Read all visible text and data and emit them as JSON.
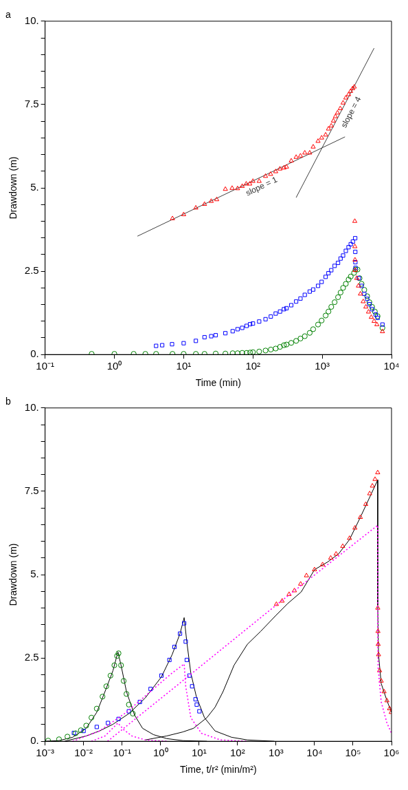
{
  "chart_data": [
    {
      "type": "scatter",
      "title": "a",
      "xlabel": "Time (min)",
      "ylabel": "Drawdown (m)",
      "log": "x",
      "grid": false,
      "xlim": [
        0.1,
        10000
      ],
      "xticks": [
        {
          "value": 0.1,
          "label": "10⁻¹"
        },
        {
          "value": 1,
          "label": "10⁰"
        },
        {
          "value": 10,
          "label": "10¹"
        },
        {
          "value": 100,
          "label": "10²"
        },
        {
          "value": 1000,
          "label": "10³"
        },
        {
          "value": 10000,
          "label": "10⁴"
        }
      ],
      "ylim": [
        0,
        10
      ],
      "yticks": [
        {
          "value": 0,
          "label": "0."
        },
        {
          "value": 0.5,
          "label": null
        },
        {
          "value": 1,
          "label": null
        },
        {
          "value": 1.5,
          "label": null
        },
        {
          "value": 2,
          "label": null
        },
        {
          "value": 2.5,
          "label": "2.5"
        },
        {
          "value": 3,
          "label": null
        },
        {
          "value": 3.5,
          "label": null
        },
        {
          "value": 4,
          "label": null
        },
        {
          "value": 4.5,
          "label": null
        },
        {
          "value": 5,
          "label": "5."
        },
        {
          "value": 5.5,
          "label": null
        },
        {
          "value": 6,
          "label": null
        },
        {
          "value": 6.5,
          "label": null
        },
        {
          "value": 7,
          "label": null
        },
        {
          "value": 7.5,
          "label": "7.5"
        },
        {
          "value": 8,
          "label": null
        },
        {
          "value": 8.5,
          "label": null
        },
        {
          "value": 9,
          "label": null
        },
        {
          "value": 9.5,
          "label": null
        },
        {
          "value": 10,
          "label": "10."
        }
      ],
      "annotations": [
        "slope = 1",
        "slope = 4"
      ],
      "series": [
        {
          "type": "scatter",
          "marker": "triangle",
          "color": "#ff0000",
          "x": [
            6.9,
            10,
            15,
            20,
            25,
            30,
            40,
            50,
            60,
            70,
            80,
            90,
            100,
            123,
            152,
            180,
            213,
            245,
            280,
            305,
            357,
            420,
            485,
            560,
            660,
            740,
            870,
            980,
            1120,
            1230,
            1350,
            1450,
            1550,
            1660,
            1820,
            2000,
            2190,
            2400,
            2570,
            2750,
            2900,
            2950,
            2960,
            2970,
            2980,
            3150,
            3330,
            3560,
            3900,
            4260,
            4650,
            5100,
            5600,
            6150,
            7400
          ],
          "values": [
            4.08,
            4.2,
            4.4,
            4.51,
            4.6,
            4.65,
            4.96,
            4.99,
            4.98,
            5.05,
            5.12,
            5.12,
            5.2,
            5.2,
            5.35,
            5.41,
            5.49,
            5.57,
            5.6,
            5.63,
            5.81,
            5.92,
            5.96,
            6.05,
            6.05,
            6.23,
            6.4,
            6.5,
            6.59,
            6.77,
            6.86,
            7.01,
            7.14,
            7.25,
            7.38,
            7.55,
            7.7,
            7.8,
            7.9,
            7.98,
            8.03,
            4.0,
            3.24,
            2.84,
            2.53,
            2.29,
            2.06,
            1.82,
            1.59,
            1.43,
            1.28,
            1.12,
            1.0,
            0.9,
            0.69
          ]
        },
        {
          "type": "scatter",
          "marker": "square",
          "color": "#0000ff",
          "x": [
            4.0,
            4.9,
            6.8,
            10,
            15,
            20,
            25,
            29,
            40,
            51,
            60,
            70,
            81,
            91,
            100,
            123,
            152,
            181,
            213,
            246,
            280,
            305,
            357,
            420,
            485,
            560,
            660,
            740,
            870,
            980,
            1120,
            1230,
            1350,
            1510,
            1690,
            1840,
            2000,
            2190,
            2400,
            2580,
            2770,
            2990,
            3000,
            3010,
            3020,
            3380,
            3700,
            4050,
            4450,
            4800,
            5250,
            5900,
            6300,
            7400
          ],
          "values": [
            0.26,
            0.28,
            0.31,
            0.34,
            0.41,
            0.52,
            0.55,
            0.58,
            0.64,
            0.7,
            0.76,
            0.8,
            0.86,
            0.91,
            0.93,
            0.99,
            1.06,
            1.14,
            1.23,
            1.29,
            1.36,
            1.39,
            1.48,
            1.59,
            1.68,
            1.79,
            1.89,
            1.95,
            2.06,
            2.18,
            2.33,
            2.44,
            2.53,
            2.66,
            2.75,
            2.88,
            2.97,
            3.11,
            3.22,
            3.31,
            3.39,
            3.49,
            3.08,
            2.77,
            2.6,
            2.29,
            2.06,
            1.82,
            1.67,
            1.51,
            1.36,
            1.2,
            1.1,
            0.9
          ]
        },
        {
          "type": "scatter",
          "marker": "circle",
          "color": "#008000",
          "x": [
            0.47,
            1,
            1.9,
            2.8,
            4,
            6.9,
            10,
            15,
            20,
            29,
            40,
            51,
            60,
            70,
            81,
            91,
            100,
            123,
            152,
            181,
            213,
            246,
            280,
            305,
            357,
            420,
            485,
            560,
            660,
            740,
            870,
            980,
            1120,
            1230,
            1350,
            1510,
            1690,
            1840,
            2000,
            2190,
            2400,
            2580,
            2880,
            3020,
            3230,
            3460,
            3700,
            4050,
            4450,
            4800,
            5250,
            5750,
            6300,
            7400
          ],
          "values": [
            0.02,
            0.02,
            0.02,
            0.02,
            0.02,
            0.02,
            0.02,
            0.02,
            0.02,
            0.03,
            0.03,
            0.04,
            0.04,
            0.05,
            0.05,
            0.06,
            0.07,
            0.09,
            0.12,
            0.15,
            0.18,
            0.23,
            0.28,
            0.3,
            0.35,
            0.41,
            0.48,
            0.55,
            0.65,
            0.76,
            0.9,
            1.02,
            1.17,
            1.29,
            1.43,
            1.57,
            1.72,
            1.86,
            2.0,
            2.12,
            2.25,
            2.34,
            2.45,
            2.55,
            2.55,
            2.29,
            2.12,
            1.94,
            1.75,
            1.57,
            1.43,
            1.29,
            1.15,
            0.8
          ]
        },
        {
          "type": "line",
          "line_style": "solid",
          "color": "#404040",
          "x": [
            2.15,
            2130
          ],
          "values": [
            3.55,
            6.53
          ]
        },
        {
          "type": "line",
          "line_style": "solid",
          "color": "#404040",
          "x": [
            420,
            5600
          ],
          "values": [
            4.71,
            9.19
          ]
        }
      ]
    },
    {
      "type": "scatter",
      "title": "b",
      "xlabel": "Time, t/r² (min/m²)",
      "ylabel": "Drawdown (m)",
      "log": "x",
      "grid": false,
      "xlim": [
        0.001,
        1000000
      ],
      "xticks": [
        {
          "value": 0.001,
          "label": "10⁻³"
        },
        {
          "value": 0.01,
          "label": "10⁻²"
        },
        {
          "value": 0.1,
          "label": "10⁻¹"
        },
        {
          "value": 1,
          "label": "10⁰"
        },
        {
          "value": 10,
          "label": "10¹"
        },
        {
          "value": 100,
          "label": "10²"
        },
        {
          "value": 1000,
          "label": "10³"
        },
        {
          "value": 10000,
          "label": "10⁴"
        },
        {
          "value": 100000,
          "label": "10⁵"
        },
        {
          "value": 1000000,
          "label": "10⁶"
        }
      ],
      "ylim": [
        0,
        10
      ],
      "yticks": [
        {
          "value": 0,
          "label": "0."
        },
        {
          "value": 0.5,
          "label": null
        },
        {
          "value": 1,
          "label": null
        },
        {
          "value": 1.5,
          "label": null
        },
        {
          "value": 2,
          "label": null
        },
        {
          "value": 2.5,
          "label": "2.5"
        },
        {
          "value": 3,
          "label": null
        },
        {
          "value": 3.5,
          "label": null
        },
        {
          "value": 4,
          "label": null
        },
        {
          "value": 4.5,
          "label": null
        },
        {
          "value": 5,
          "label": "5."
        },
        {
          "value": 5.5,
          "label": null
        },
        {
          "value": 6,
          "label": null
        },
        {
          "value": 6.5,
          "label": null
        },
        {
          "value": 7,
          "label": null
        },
        {
          "value": 7.5,
          "label": "7.5"
        },
        {
          "value": 8,
          "label": null
        },
        {
          "value": 8.5,
          "label": null
        },
        {
          "value": 9,
          "label": null
        },
        {
          "value": 9.5,
          "label": null
        },
        {
          "value": 10,
          "label": "10."
        }
      ],
      "series": [
        {
          "type": "line",
          "line_style": "dotted",
          "color": "#ff00ff",
          "x": [
            0.016,
            0.036,
            0.078,
            0.11,
            0.18,
            0.4,
            1.45
          ],
          "values": [
            0,
            0.16,
            0.55,
            0.35,
            0.16,
            0.04,
            0
          ]
        },
        {
          "type": "line",
          "line_style": "dotted",
          "color": "#ff00ff",
          "x": [
            0.0052,
            0.026,
            0.13,
            0.65,
            2,
            4.1,
            4.5,
            6.1,
            11.5,
            36,
            180
          ],
          "values": [
            0,
            0.31,
            0.87,
            1.57,
            2.05,
            2.32,
            1.65,
            0.71,
            0.24,
            0.04,
            0
          ]
        },
        {
          "type": "line",
          "line_style": "dotted",
          "color": "#ff00ff",
          "x": [
            0.042,
            4.1,
            1020,
            438000,
            438000,
            450000,
            540000,
            760000,
            1000000
          ],
          "values": [
            0,
            1.85,
            4.09,
            6.48,
            3.3,
            2.2,
            1.18,
            0.55,
            0.24
          ]
        },
        {
          "type": "scatter",
          "marker": "circle",
          "color": "#008000",
          "x": [
            0.0012,
            0.0023,
            0.0038,
            0.0062,
            0.0085,
            0.0117,
            0.016,
            0.022,
            0.031,
            0.039,
            0.05,
            0.063,
            0.074,
            0.081,
            0.094,
            0.11,
            0.13,
            0.15,
            0.19
          ],
          "values": [
            0.02,
            0.06,
            0.14,
            0.24,
            0.33,
            0.47,
            0.71,
            0.98,
            1.34,
            1.65,
            1.97,
            2.28,
            2.56,
            2.64,
            2.28,
            1.81,
            1.42,
            1.1,
            0.83
          ]
        },
        {
          "type": "scatter",
          "marker": "square",
          "color": "#0000ff",
          "x": [
            0.0056,
            0.01,
            0.022,
            0.043,
            0.081,
            0.15,
            0.29,
            0.55,
            1.05,
            1.7,
            2.3,
            3.2,
            4.1,
            4.5,
            4.8,
            5.6,
            6.6,
            8.1,
            8.7,
            10.2
          ],
          "values": [
            0.25,
            0.31,
            0.43,
            0.55,
            0.67,
            0.9,
            1.18,
            1.57,
            1.97,
            2.44,
            2.83,
            3.23,
            3.54,
            2.99,
            2.44,
            1.97,
            1.65,
            1.26,
            1.1,
            0.9
          ]
        },
        {
          "type": "scatter",
          "marker": "triangle",
          "color": "#ff0000",
          "x": [
            1020,
            1440,
            2180,
            3000,
            4350,
            6170,
            10000,
            16200,
            26300,
            36300,
            54000,
            81000,
            112000,
            155000,
            214000,
            271000,
            318000,
            373000,
            438000,
            440000,
            445000,
            450000,
            460000,
            490000,
            540000,
            640000,
            760000,
            890000,
            980000
          ],
          "values": [
            4.11,
            4.21,
            4.41,
            4.52,
            4.72,
            4.97,
            5.15,
            5.3,
            5.5,
            5.62,
            5.85,
            6.09,
            6.4,
            6.72,
            7.11,
            7.43,
            7.66,
            7.86,
            8.06,
            4.0,
            3.3,
            2.91,
            2.6,
            2.12,
            1.81,
            1.49,
            1.22,
            0.98,
            0.87
          ]
        },
        {
          "type": "line",
          "line_style": "solid",
          "color": "#000000",
          "x": [
            0.001,
            0.0023,
            0.0052,
            0.0117,
            0.022,
            0.036,
            0.058,
            0.078,
            0.094,
            0.13,
            0.21,
            0.34,
            0.65,
            1.45,
            3.8,
            16
          ],
          "values": [
            0,
            0.02,
            0.12,
            0.39,
            0.87,
            1.49,
            2.12,
            2.68,
            2.28,
            1.49,
            0.79,
            0.39,
            0.2,
            0.08,
            0.02,
            0
          ]
        },
        {
          "type": "line",
          "line_style": "solid",
          "color": "#000000",
          "x": [
            0.0032,
            0.0117,
            0.026,
            0.058,
            0.15,
            0.4,
            1.05,
            2,
            3.2,
            4.1,
            4.8,
            6.1,
            8.5,
            13.8,
            26,
            70,
            180,
            900
          ],
          "values": [
            0,
            0.16,
            0.31,
            0.51,
            0.83,
            1.3,
            1.93,
            2.6,
            3.23,
            3.71,
            2.99,
            2.05,
            1.34,
            0.71,
            0.31,
            0.12,
            0.04,
            0
          ]
        },
        {
          "type": "line",
          "line_style": "solid",
          "color": "#000000",
          "x": [
            0.4,
            1.45,
            3.8,
            7.2,
            16,
            26,
            42,
            81,
            180,
            400,
            1000,
            2000,
            4500,
            10000,
            22000,
            42000,
            81000,
            155000,
            300000,
            438000,
            438000,
            460000,
            540000,
            760000,
            1000000
          ],
          "values": [
            0.04,
            0.16,
            0.28,
            0.39,
            0.71,
            1.02,
            1.49,
            2.28,
            2.91,
            3.3,
            3.78,
            4.13,
            4.48,
            5.15,
            5.38,
            5.62,
            6.05,
            6.72,
            7.43,
            7.84,
            4.09,
            2.6,
            1.73,
            1.22,
            0.87
          ]
        }
      ]
    }
  ]
}
